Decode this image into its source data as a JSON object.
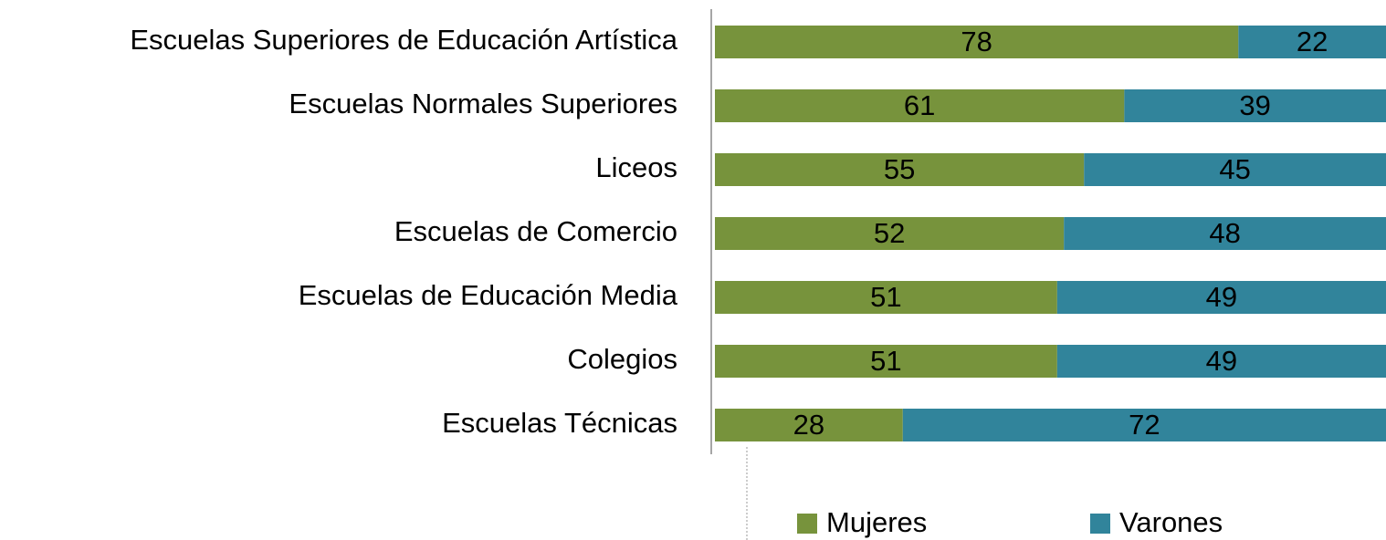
{
  "chart_data": {
    "type": "bar",
    "orientation": "horizontal",
    "stacked": true,
    "categories": [
      "Escuelas Superiores de Educación Artística",
      "Escuelas Normales Superiores",
      "Liceos",
      "Escuelas de Comercio",
      "Escuelas de Educación Media",
      "Colegios",
      "Escuelas Técnicas"
    ],
    "series": [
      {
        "name": "Mujeres",
        "color": "#77933c",
        "values": [
          78,
          61,
          55,
          52,
          51,
          51,
          28
        ]
      },
      {
        "name": "Varones",
        "color": "#31849b",
        "values": [
          22,
          39,
          45,
          48,
          49,
          49,
          72
        ]
      }
    ],
    "xlim": [
      0,
      100
    ],
    "legend": "bottom"
  }
}
